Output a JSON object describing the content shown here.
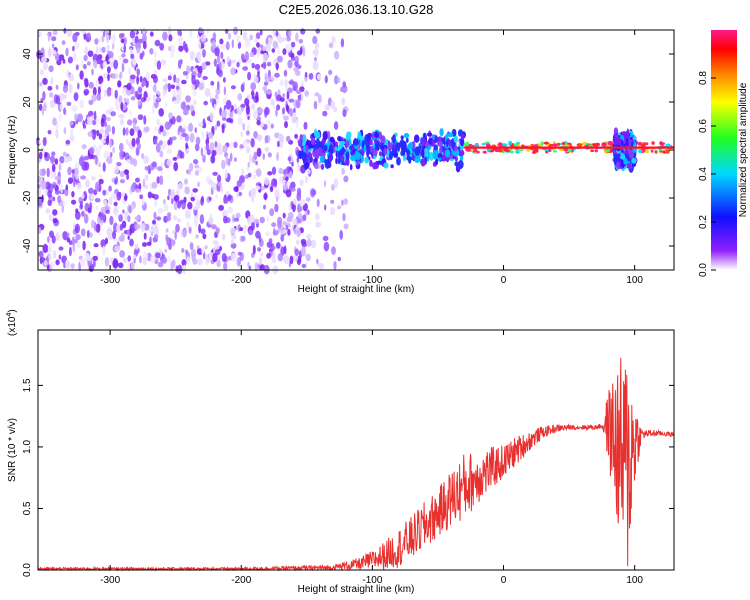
{
  "title": "C2E5.2026.036.13.10.G28",
  "colors": {
    "snr_line": "#e8302e",
    "frame": "#000000"
  },
  "chart_data": [
    {
      "type": "heatmap",
      "xlabel": "Height of straight line (km)",
      "ylabel": "Frequency (Hz)",
      "xlim": [
        -355,
        130
      ],
      "ylim": [
        -50,
        50
      ],
      "x_ticks": [
        -300,
        -200,
        -100,
        0,
        100
      ],
      "x_tick_labels": [
        "-300",
        "-200",
        "-100",
        "0",
        "100"
      ],
      "y_ticks": [
        -40,
        -20,
        0,
        20,
        40
      ],
      "y_tick_labels": [
        "-40",
        "-20",
        "0",
        "20",
        "40"
      ],
      "regions": [
        {
          "x_range": [
            -355,
            -150
          ],
          "freq_spread": [
            -50,
            50
          ],
          "level": "noise"
        },
        {
          "x_range": [
            -150,
            -120
          ],
          "freq_spread": [
            -50,
            50
          ],
          "level": "sparse noise"
        },
        {
          "x_range": [
            -155,
            -30
          ],
          "freq_center": 0,
          "freq_halfwidth": 8,
          "level": "medium"
        },
        {
          "x_range": [
            -30,
            130
          ],
          "freq_center": 1,
          "freq_halfwidth": 2,
          "level": "high"
        },
        {
          "x_range": [
            85,
            100
          ],
          "freq_center": 0,
          "freq_halfwidth": 8,
          "level": "medium"
        }
      ],
      "colorbar": {
        "label": "Normalized spectral amplitude",
        "range": [
          0,
          1
        ],
        "ticks": [
          0.0,
          0.2,
          0.4,
          0.6,
          0.8
        ],
        "tick_labels": [
          "0.0",
          "0.2",
          "0.4",
          "0.6",
          "0.8"
        ],
        "colormap": [
          "#ffffff",
          "#8800ff",
          "#0000ff",
          "#00d8ff",
          "#00ff40",
          "#ffff00",
          "#ff8000",
          "#ff0000",
          "#ff1a8c"
        ]
      }
    },
    {
      "type": "line",
      "xlabel": "Height of straight line (km)",
      "ylabel": "SNR (10 * v/v)",
      "y_multiplier": "(x10",
      "y_multiplier_exp": "4",
      "y_multiplier_close": ")",
      "xlim": [
        -355,
        130
      ],
      "ylim": [
        0,
        1.95
      ],
      "x_ticks": [
        -300,
        -200,
        -100,
        0,
        100
      ],
      "x_tick_labels": [
        "-300",
        "-200",
        "-100",
        "0",
        "100"
      ],
      "y_ticks": [
        0.0,
        0.5,
        1.0,
        1.5
      ],
      "y_tick_labels": [
        "0.0",
        "0.5",
        "1.0",
        "1.5"
      ],
      "series": [
        {
          "x": [
            -355,
            -300,
            -200,
            -130,
            -110,
            -100,
            -90,
            -80,
            -70,
            -60,
            -50,
            -40,
            -30,
            -20,
            -10,
            0,
            10,
            20,
            30,
            40,
            50,
            60,
            70,
            75,
            80,
            85,
            90,
            95,
            100,
            105,
            110,
            120,
            130
          ],
          "y_mean": [
            0.01,
            0.01,
            0.01,
            0.02,
            0.05,
            0.08,
            0.12,
            0.18,
            0.26,
            0.36,
            0.46,
            0.58,
            0.68,
            0.75,
            0.82,
            0.88,
            0.97,
            1.05,
            1.12,
            1.15,
            1.16,
            1.16,
            1.16,
            1.17,
            1.17,
            1.05,
            0.9,
            0.85,
            1.05,
            1.1,
            1.11,
            1.11,
            1.1
          ],
          "y_spread": [
            0.01,
            0.01,
            0.01,
            0.02,
            0.05,
            0.08,
            0.12,
            0.16,
            0.18,
            0.2,
            0.2,
            0.24,
            0.28,
            0.22,
            0.18,
            0.14,
            0.12,
            0.08,
            0.05,
            0.03,
            0.02,
            0.02,
            0.02,
            0.02,
            0.3,
            0.6,
            0.85,
            0.95,
            0.4,
            0.05,
            0.03,
            0.02,
            0.02
          ]
        }
      ]
    }
  ]
}
